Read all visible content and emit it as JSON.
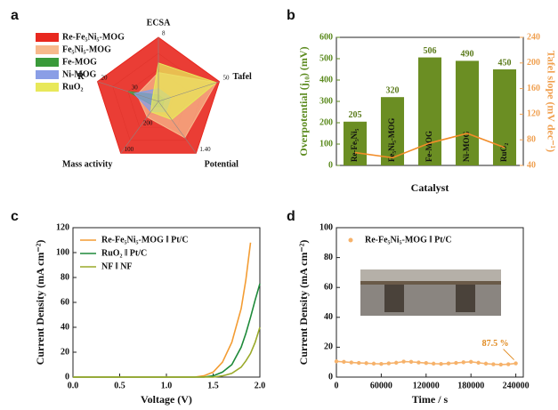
{
  "chart_data": [
    {
      "type": "radar",
      "panel": "a",
      "axes": [
        {
          "name": "ECSA",
          "lim": [
            0,
            8
          ],
          "ticks": [
            8
          ]
        },
        {
          "name": "Tafel",
          "lim": [
            250,
            50
          ],
          "ticks": [
            50
          ]
        },
        {
          "name": "Potential",
          "lim": [
            1.6,
            1.4
          ],
          "ticks": [
            {
              "value": 1.4,
              "label": "1.40"
            }
          ]
        },
        {
          "name": "Mass activity",
          "lim": [
            300,
            100
          ],
          "ticks": [
            100,
            200
          ]
        },
        {
          "name": "R",
          "lim": [
            40,
            20
          ],
          "ticks": [
            20,
            30
          ]
        }
      ],
      "series": [
        {
          "name": "Re-Fe₅Ni₅-MOG",
          "color": "#e8281f",
          "values": [
            8,
            50,
            1.4,
            100,
            20
          ]
        },
        {
          "name": "Fe₅Ni₅-MOG",
          "color": "#f7b98c",
          "values": [
            3.6,
            60,
            1.46,
            240,
            33
          ]
        },
        {
          "name": "Fe-MOG",
          "color": "#3a9a3a",
          "values": [
            0.8,
            230,
            1.58,
            280,
            30
          ]
        },
        {
          "name": "Ni-MOG",
          "color": "#8a9ee6",
          "values": [
            1.6,
            210,
            1.56,
            260,
            32
          ]
        },
        {
          "name": "RuO₂",
          "color": "#e8e85a",
          "values": [
            4.8,
            60,
            1.53,
            260,
            38
          ]
        }
      ]
    },
    {
      "type": "bar",
      "panel": "b",
      "x_label": "Catalyst",
      "y_label": "Overpotential (j₁₀) (mV)",
      "y2_label": "Tafel slope (mV dec⁻¹)",
      "categories": [
        "Re-Fe₅Ni₅",
        "Fe₅Ni₅-MOG",
        "Fe-MOG",
        "Ni-MOG",
        "RuO₂"
      ],
      "ylim": [
        0,
        600
      ],
      "yticks": [
        0,
        100,
        200,
        300,
        400,
        500,
        600
      ],
      "y2lim": [
        40,
        240
      ],
      "y2ticks": [
        40,
        80,
        120,
        160,
        200,
        240
      ],
      "series": [
        {
          "color": "#6b8e23",
          "values": [
            205,
            320,
            506,
            490,
            450
          ]
        },
        {
          "color": "#f28c28",
          "axis": "y2",
          "values": [
            60,
            52,
            75,
            90,
            68
          ]
        }
      ]
    },
    {
      "type": "line",
      "panel": "c",
      "x_label": "Voltage (V)",
      "y_label": "Current Density (mA cm⁻²)",
      "xlim": [
        0,
        2
      ],
      "xticks": [
        {
          "value": 0,
          "label": "0.0"
        },
        {
          "value": 0.5,
          "label": "0.5"
        },
        {
          "value": 1,
          "label": "1.0"
        },
        {
          "value": 1.5,
          "label": "1.5"
        },
        {
          "value": 2,
          "label": "2.0"
        }
      ],
      "ylim": [
        0,
        120
      ],
      "yticks": [
        0,
        20,
        40,
        60,
        80,
        100,
        120
      ],
      "x": [
        0,
        0.5,
        1.0,
        1.3,
        1.4,
        1.5,
        1.6,
        1.7,
        1.8,
        1.85,
        1.9,
        1.95,
        2.0
      ],
      "series": [
        {
          "name": "Re-Fe₅Ni₅-MOG ‖ Pt/C",
          "color": "#f39c33",
          "values": [
            0,
            0,
            0,
            0,
            1,
            4,
            12,
            28,
            55,
            78,
            108,
            null,
            null
          ]
        },
        {
          "name": "RuO₂ ‖ Pt/C",
          "color": "#1e8a3a",
          "values": [
            0,
            0,
            0,
            0,
            0,
            1,
            4,
            10,
            24,
            35,
            48,
            62,
            75
          ]
        },
        {
          "name": "NF ‖ NF",
          "color": "#9aaa2a",
          "values": [
            0,
            0,
            0,
            0,
            0,
            0,
            1,
            3,
            8,
            13,
            19,
            28,
            40
          ]
        }
      ]
    },
    {
      "type": "line",
      "panel": "d",
      "markers": true,
      "x_label": "Time / s",
      "y_label": "Current Density (mA cm⁻²)",
      "annotation": "87.5 %",
      "xlim": [
        0,
        250000
      ],
      "xticks": [
        0,
        60000,
        120000,
        180000,
        240000
      ],
      "ylim": [
        0,
        100
      ],
      "yticks": [
        0,
        20,
        40,
        60,
        80,
        100
      ],
      "x": [
        0,
        10000,
        20000,
        30000,
        40000,
        50000,
        60000,
        70000,
        80000,
        90000,
        100000,
        110000,
        120000,
        130000,
        140000,
        150000,
        160000,
        170000,
        180000,
        190000,
        200000,
        210000,
        220000,
        230000,
        240000
      ],
      "series": [
        {
          "name": "Re-Fe₅Ni₅-MOG ‖ Pt/C",
          "color": "#f6b26b",
          "values": [
            10.5,
            10.2,
            9.8,
            9.5,
            9.3,
            9.0,
            8.8,
            9.2,
            9.6,
            10.4,
            10.2,
            9.8,
            9.4,
            9.0,
            8.8,
            9.1,
            9.5,
            9.9,
            10.2,
            9.6,
            9.0,
            8.6,
            8.4,
            8.6,
            9.2
          ]
        }
      ]
    }
  ]
}
